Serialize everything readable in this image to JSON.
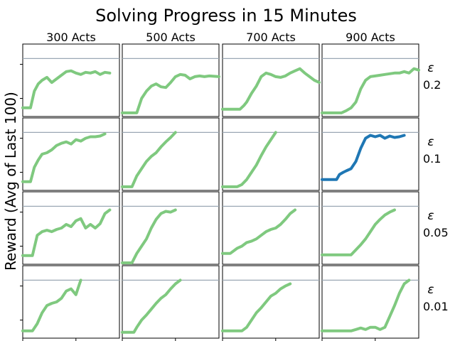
{
  "chart_data": {
    "type": "line",
    "title": "Solving Progress in 15 Minutes",
    "ylabel": "Reward (Avg of Last 100)",
    "columns": [
      "300 Acts",
      "500 Acts",
      "700 Acts",
      "900 Acts"
    ],
    "rows": [
      {
        "symbol": "ε",
        "value": "0.2"
      },
      {
        "symbol": "ε",
        "value": "0.1"
      },
      {
        "symbol": "ε",
        "value": "0.05"
      },
      {
        "symbol": "ε",
        "value": "0.01"
      }
    ],
    "xlim": [
      0,
      1
    ],
    "ylim": [
      0,
      1
    ],
    "grid": false,
    "target_level": 0.8,
    "colors": {
      "normal": "#7fc97f",
      "highlight": "#1f77b4",
      "target": "#9aa7b4"
    },
    "panels": [
      [
        {
          "x": [
            0,
            0.08,
            0.12,
            0.16,
            0.2,
            0.25,
            0.3,
            0.35,
            0.4,
            0.45,
            0.5,
            0.55,
            0.6,
            0.65,
            0.7,
            0.75,
            0.8,
            0.85,
            0.9
          ],
          "y": [
            0.12,
            0.12,
            0.35,
            0.45,
            0.5,
            0.54,
            0.47,
            0.52,
            0.57,
            0.62,
            0.63,
            0.6,
            0.58,
            0.61,
            0.6,
            0.62,
            0.58,
            0.61,
            0.6
          ]
        },
        {
          "x": [
            0,
            0.15,
            0.2,
            0.25,
            0.3,
            0.35,
            0.4,
            0.45,
            0.5,
            0.55,
            0.6,
            0.65,
            0.7,
            0.75,
            0.8,
            0.85,
            0.9,
            1
          ],
          "y": [
            0.05,
            0.05,
            0.25,
            0.35,
            0.42,
            0.45,
            0.41,
            0.4,
            0.47,
            0.55,
            0.58,
            0.57,
            0.52,
            0.55,
            0.56,
            0.55,
            0.56,
            0.55
          ]
        },
        {
          "x": [
            0,
            0.18,
            0.22,
            0.25,
            0.3,
            0.35,
            0.4,
            0.45,
            0.5,
            0.55,
            0.6,
            0.65,
            0.7,
            0.75,
            0.8,
            0.85,
            0.9,
            0.95,
            1
          ],
          "y": [
            0.1,
            0.1,
            0.15,
            0.2,
            0.32,
            0.42,
            0.55,
            0.6,
            0.58,
            0.55,
            0.54,
            0.56,
            0.6,
            0.63,
            0.66,
            0.6,
            0.55,
            0.5,
            0.47
          ]
        },
        {
          "x": [
            0,
            0.2,
            0.25,
            0.3,
            0.35,
            0.4,
            0.45,
            0.5,
            0.55,
            0.6,
            0.65,
            0.7,
            0.75,
            0.8,
            0.85,
            0.9,
            0.95,
            1
          ],
          "y": [
            0.05,
            0.05,
            0.08,
            0.12,
            0.2,
            0.38,
            0.5,
            0.55,
            0.56,
            0.57,
            0.58,
            0.59,
            0.6,
            0.6,
            0.62,
            0.6,
            0.66,
            0.64
          ]
        }
      ],
      [
        {
          "x": [
            0,
            0.08,
            0.12,
            0.16,
            0.2,
            0.25,
            0.3,
            0.35,
            0.4,
            0.45,
            0.5,
            0.55,
            0.6,
            0.65,
            0.7,
            0.75,
            0.8,
            0.85
          ],
          "y": [
            0.12,
            0.12,
            0.32,
            0.42,
            0.5,
            0.52,
            0.56,
            0.62,
            0.65,
            0.67,
            0.64,
            0.7,
            0.68,
            0.72,
            0.74,
            0.74,
            0.75,
            0.78
          ]
        },
        {
          "x": [
            0,
            0.1,
            0.15,
            0.2,
            0.25,
            0.3,
            0.35,
            0.4,
            0.45,
            0.5,
            0.55
          ],
          "y": [
            0.05,
            0.05,
            0.2,
            0.3,
            0.4,
            0.47,
            0.52,
            0.6,
            0.67,
            0.73,
            0.8
          ]
        },
        {
          "x": [
            0,
            0.15,
            0.2,
            0.25,
            0.3,
            0.35,
            0.4,
            0.45,
            0.5,
            0.55
          ],
          "y": [
            0.05,
            0.05,
            0.08,
            0.15,
            0.25,
            0.35,
            0.48,
            0.6,
            0.7,
            0.8
          ]
        },
        {
          "x": [
            0,
            0.15,
            0.18,
            0.22,
            0.25,
            0.3,
            0.35,
            0.4,
            0.45,
            0.5,
            0.55,
            0.6,
            0.65,
            0.7,
            0.75,
            0.8,
            0.85
          ],
          "y": [
            0.15,
            0.15,
            0.22,
            0.25,
            0.27,
            0.3,
            0.4,
            0.58,
            0.72,
            0.76,
            0.74,
            0.76,
            0.72,
            0.75,
            0.73,
            0.74,
            0.76
          ],
          "highlight": true
        }
      ],
      [
        {
          "x": [
            0,
            0.1,
            0.15,
            0.2,
            0.25,
            0.3,
            0.35,
            0.4,
            0.45,
            0.5,
            0.55,
            0.6,
            0.65,
            0.7,
            0.75,
            0.8,
            0.85,
            0.9
          ],
          "y": [
            0.12,
            0.12,
            0.4,
            0.45,
            0.47,
            0.45,
            0.48,
            0.5,
            0.55,
            0.52,
            0.6,
            0.63,
            0.5,
            0.55,
            0.5,
            0.56,
            0.7,
            0.75
          ]
        },
        {
          "x": [
            0,
            0.1,
            0.15,
            0.2,
            0.25,
            0.3,
            0.35,
            0.4,
            0.45,
            0.5,
            0.55
          ],
          "y": [
            0.02,
            0.02,
            0.15,
            0.25,
            0.35,
            0.5,
            0.62,
            0.7,
            0.73,
            0.72,
            0.75
          ]
        },
        {
          "x": [
            0,
            0.08,
            0.15,
            0.2,
            0.25,
            0.3,
            0.35,
            0.4,
            0.45,
            0.5,
            0.55,
            0.6,
            0.65,
            0.7,
            0.75
          ],
          "y": [
            0.15,
            0.15,
            0.22,
            0.25,
            0.3,
            0.32,
            0.35,
            0.4,
            0.45,
            0.48,
            0.5,
            0.55,
            0.62,
            0.7,
            0.75
          ]
        },
        {
          "x": [
            0,
            0.3,
            0.35,
            0.4,
            0.45,
            0.5,
            0.55,
            0.6,
            0.65,
            0.7,
            0.75
          ],
          "y": [
            0.13,
            0.13,
            0.2,
            0.27,
            0.35,
            0.45,
            0.55,
            0.62,
            0.68,
            0.72,
            0.75
          ]
        }
      ],
      [
        {
          "x": [
            0,
            0.1,
            0.15,
            0.2,
            0.25,
            0.3,
            0.35,
            0.4,
            0.45,
            0.5,
            0.55,
            0.6
          ],
          "y": [
            0.1,
            0.1,
            0.2,
            0.35,
            0.45,
            0.48,
            0.5,
            0.55,
            0.65,
            0.68,
            0.6,
            0.8
          ]
        },
        {
          "x": [
            0,
            0.12,
            0.15,
            0.2,
            0.25,
            0.3,
            0.35,
            0.4,
            0.45,
            0.5,
            0.55,
            0.6
          ],
          "y": [
            0.08,
            0.08,
            0.15,
            0.25,
            0.32,
            0.4,
            0.48,
            0.55,
            0.6,
            0.68,
            0.75,
            0.8
          ]
        },
        {
          "x": [
            0,
            0.2,
            0.25,
            0.3,
            0.35,
            0.4,
            0.45,
            0.5,
            0.55,
            0.6,
            0.65,
            0.7
          ],
          "y": [
            0.1,
            0.1,
            0.15,
            0.25,
            0.35,
            0.42,
            0.5,
            0.58,
            0.62,
            0.68,
            0.72,
            0.75
          ]
        },
        {
          "x": [
            0,
            0.3,
            0.35,
            0.4,
            0.45,
            0.5,
            0.55,
            0.6,
            0.65,
            0.7,
            0.75,
            0.8,
            0.85,
            0.9
          ],
          "y": [
            0.1,
            0.1,
            0.12,
            0.14,
            0.12,
            0.15,
            0.15,
            0.12,
            0.15,
            0.3,
            0.45,
            0.62,
            0.75,
            0.8
          ]
        }
      ]
    ]
  }
}
